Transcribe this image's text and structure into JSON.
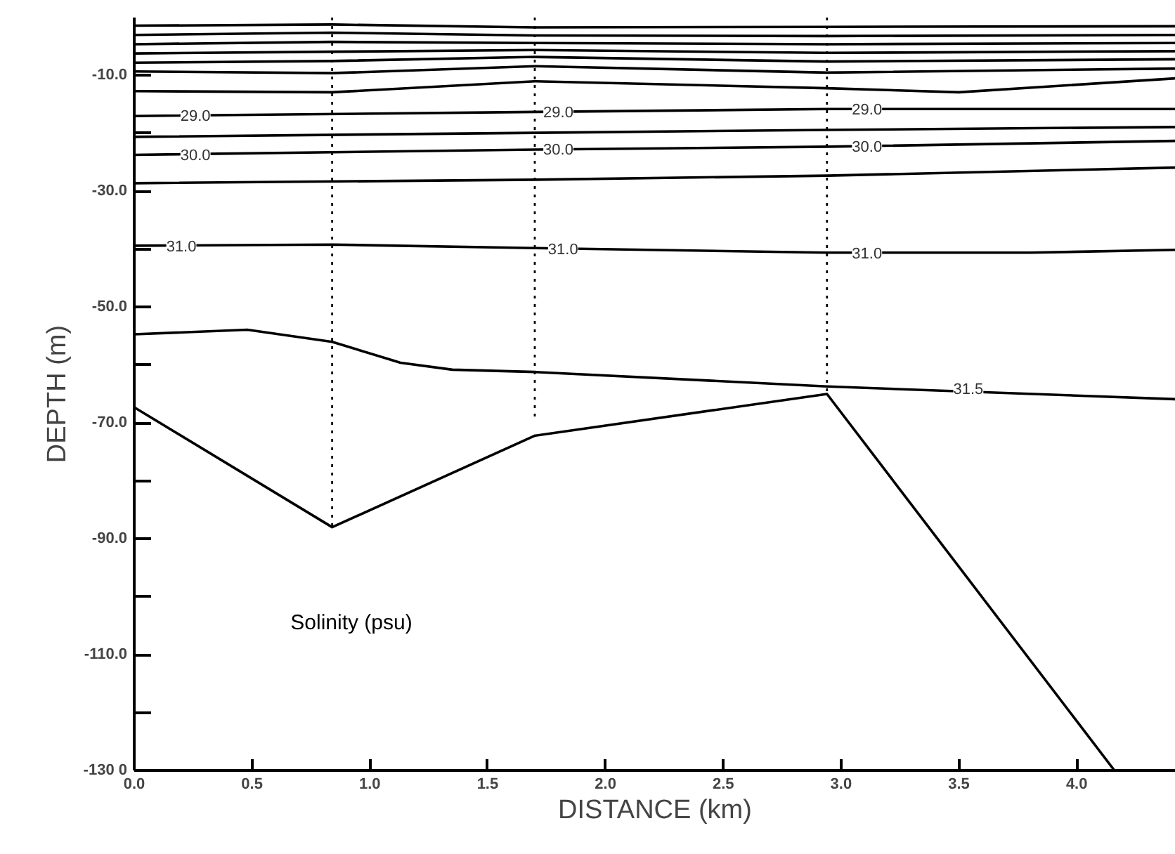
{
  "chart_data": {
    "type": "line",
    "xlabel": "DISTANCE (km)",
    "ylabel": "DEPTH (m)",
    "xlim": [
      0,
      4.42
    ],
    "ylim": [
      -130,
      0
    ],
    "xticks": [
      {
        "value": 0,
        "label": "0.0"
      },
      0.5,
      {
        "value": 1,
        "label": "1.0"
      },
      1.5,
      {
        "value": 2,
        "label": "2.0"
      },
      2.5,
      {
        "value": 3,
        "label": "3.0"
      },
      3.5,
      {
        "value": 4,
        "label": "4.0"
      }
    ],
    "yticks": [
      {
        "value": -10,
        "label": "-10.0"
      },
      {
        "value": -20,
        "label": null
      },
      {
        "value": -30,
        "label": "-30.0"
      },
      {
        "value": -40,
        "label": null
      },
      {
        "value": -50,
        "label": "-50.0"
      },
      {
        "value": -60,
        "label": null
      },
      {
        "value": -70,
        "label": "-70.0"
      },
      {
        "value": -80,
        "label": null
      },
      {
        "value": -90,
        "label": "-90.0"
      },
      {
        "value": -100,
        "label": null
      },
      {
        "value": -110,
        "label": "-110.0"
      },
      {
        "value": -120,
        "label": null
      },
      {
        "value": -130,
        "label": "-130 0"
      }
    ],
    "series": [
      {
        "color": "#000000",
        "line_style": "solid",
        "x": [
          0,
          0.84,
          1.7,
          2.94,
          4.16
        ],
        "values": [
          -67.3,
          -88,
          -72.2,
          -65,
          -130
        ]
      },
      {
        "color": "#000000",
        "line_style": "solid",
        "x": [
          0,
          0.48,
          0.84,
          1.13,
          1.35,
          1.7,
          2.94,
          4.42
        ],
        "values": [
          -54.7,
          -53.9,
          -56,
          -59.6,
          -60.8,
          -61.2,
          -63.7,
          -65.9
        ]
      },
      {
        "color": "#000000",
        "line_style": "solid",
        "x": [
          0,
          0.84,
          1.7,
          2.94,
          3.8,
          4.42
        ],
        "values": [
          -39.4,
          -39.2,
          -39.8,
          -40.6,
          -40.6,
          -40.1
        ]
      },
      {
        "color": "#000000",
        "line_style": "solid",
        "x": [
          0,
          1.7,
          2.94,
          4.42
        ],
        "values": [
          -28.6,
          -28,
          -27.3,
          -25.9
        ]
      },
      {
        "color": "#000000",
        "line_style": "solid",
        "x": [
          0,
          1.7,
          2.94,
          4.42
        ],
        "values": [
          -23.7,
          -22.8,
          -22.3,
          -21.3
        ]
      },
      {
        "color": "#000000",
        "line_style": "solid",
        "x": [
          0,
          1.7,
          2.94,
          4.42
        ],
        "values": [
          -20.6,
          -19.9,
          -19.4,
          -18.9
        ]
      },
      {
        "color": "#000000",
        "line_style": "solid",
        "x": [
          0,
          1.7,
          2.94,
          4.42
        ],
        "values": [
          -17,
          -16.3,
          -15.8,
          -15.8
        ]
      },
      {
        "color": "#000000",
        "line_style": "solid",
        "x": [
          0,
          0.84,
          1.7,
          2.94,
          3.5,
          4.42
        ],
        "values": [
          -12.7,
          -12.9,
          -11,
          -12.2,
          -12.9,
          -10.5
        ]
      },
      {
        "color": "#000000",
        "line_style": "solid",
        "x": [
          0,
          0.84,
          1.7,
          2.94,
          4.42
        ],
        "values": [
          -9.3,
          -9.6,
          -8.4,
          -9.5,
          -8.8
        ]
      },
      {
        "color": "#000000",
        "line_style": "solid",
        "x": [
          0,
          0.84,
          1.7,
          2.94,
          4.42
        ],
        "values": [
          -7.8,
          -7.5,
          -6.8,
          -7.6,
          -7.2
        ]
      },
      {
        "color": "#000000",
        "line_style": "solid",
        "x": [
          0,
          0.84,
          1.7,
          2.94,
          4.42
        ],
        "values": [
          -6.2,
          -5.9,
          -5.6,
          -6.1,
          -5.8
        ]
      },
      {
        "color": "#000000",
        "line_style": "solid",
        "x": [
          0,
          0.84,
          1.7,
          2.94,
          4.42
        ],
        "values": [
          -4.6,
          -4.2,
          -4.4,
          -4.6,
          -4.4
        ]
      },
      {
        "color": "#000000",
        "line_style": "solid",
        "x": [
          0,
          0.84,
          1.7,
          2.94,
          4.42
        ],
        "values": [
          -3,
          -2.6,
          -3.1,
          -3.2,
          -3
        ]
      },
      {
        "color": "#000000",
        "line_style": "solid",
        "x": [
          0,
          0.84,
          1.7,
          2.94,
          4.42
        ],
        "values": [
          -1.4,
          -1.2,
          -1.7,
          -1.6,
          -1.5
        ]
      },
      {
        "color": "#000000",
        "line_style": "dotted",
        "x": [
          0.84,
          0.84
        ],
        "values": [
          0,
          -88
        ]
      },
      {
        "color": "#000000",
        "line_style": "dotted",
        "x": [
          1.7,
          1.7
        ],
        "values": [
          0,
          -69
        ]
      },
      {
        "color": "#000000",
        "line_style": "dotted",
        "x": [
          2.94,
          2.94
        ],
        "values": [
          0,
          -65
        ]
      }
    ],
    "annotations": [
      "Solinity (psu)",
      {
        "text": "29.0",
        "x": 0.26,
        "y": -16.9
      },
      {
        "text": "29.0",
        "x": 1.8,
        "y": -16.2
      },
      {
        "text": "29.0",
        "x": 3.11,
        "y": -15.8
      },
      {
        "text": "30.0",
        "x": 0.26,
        "y": -23.6
      },
      {
        "text": "30.0",
        "x": 1.8,
        "y": -22.7
      },
      {
        "text": "30.0",
        "x": 3.11,
        "y": -22.2
      },
      {
        "text": "31.0",
        "x": 0.2,
        "y": -39.4
      },
      {
        "text": "31.0",
        "x": 1.82,
        "y": -39.9
      },
      {
        "text": "31.0",
        "x": 3.11,
        "y": -40.6
      },
      {
        "text": "31.5",
        "x": 3.54,
        "y": -64
      }
    ]
  }
}
